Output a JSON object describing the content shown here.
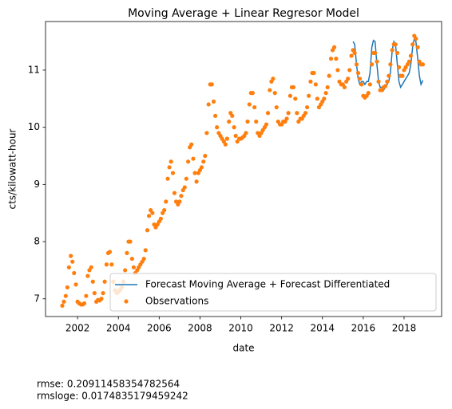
{
  "chart_data": {
    "type": "line",
    "title": "Moving Average + Linear Regresor Model",
    "x_label": "date",
    "y_label": "cts/kilowatt-hour",
    "xlim": [
      2000.43,
      2019.84
    ],
    "ylim": [
      6.69,
      11.85
    ],
    "xticks": [
      2002,
      2004,
      2006,
      2008,
      2010,
      2012,
      2014,
      2016,
      2018
    ],
    "yticks": [
      7,
      8,
      9,
      10,
      11
    ],
    "legend": "lower right",
    "series": [
      {
        "name": "Forecast Moving Average + Forecast Differentiated",
        "color": "#1f77b4",
        "style": "line",
        "x": [
          2015.5,
          2015.58,
          2015.67,
          2015.75,
          2015.83,
          2015.92,
          2016,
          2016.08,
          2016.17,
          2016.25,
          2016.33,
          2016.42,
          2016.5,
          2016.58,
          2016.67,
          2016.75,
          2016.83,
          2016.92,
          2017,
          2017.08,
          2017.17,
          2017.25,
          2017.33,
          2017.42,
          2017.5,
          2017.58,
          2017.67,
          2017.75,
          2017.83,
          2017.92,
          2018,
          2018.08,
          2018.17,
          2018.25,
          2018.33,
          2018.42,
          2018.5,
          2018.58,
          2018.67,
          2018.75,
          2018.83,
          2018.92
        ],
        "values": [
          11.5,
          11.45,
          11.1,
          10.85,
          10.75,
          10.8,
          10.8,
          10.75,
          10.8,
          10.8,
          10.95,
          11.4,
          11.52,
          11.5,
          11.1,
          10.8,
          10.7,
          10.7,
          10.65,
          10.7,
          10.75,
          10.8,
          10.95,
          11.35,
          11.5,
          11.45,
          11.1,
          10.8,
          10.7,
          10.75,
          10.8,
          10.85,
          10.9,
          10.95,
          11.1,
          11.4,
          11.55,
          11.5,
          11.2,
          10.9,
          10.75,
          10.82
        ]
      },
      {
        "name": "Observations",
        "color": "#ff7f0e",
        "style": "points",
        "x": [
          2001.25,
          2001.33,
          2001.42,
          2001.5,
          2001.58,
          2001.67,
          2001.75,
          2001.83,
          2001.92,
          2002,
          2002.08,
          2002.17,
          2002.25,
          2002.33,
          2002.42,
          2002.5,
          2002.58,
          2002.67,
          2002.75,
          2002.83,
          2002.92,
          2003,
          2003.08,
          2003.17,
          2003.25,
          2003.33,
          2003.42,
          2003.5,
          2003.58,
          2003.67,
          2003.75,
          2003.83,
          2003.92,
          2004,
          2004.08,
          2004.17,
          2004.25,
          2004.33,
          2004.42,
          2004.5,
          2004.58,
          2004.67,
          2004.75,
          2004.83,
          2004.92,
          2005,
          2005.08,
          2005.17,
          2005.25,
          2005.33,
          2005.42,
          2005.5,
          2005.58,
          2005.67,
          2005.75,
          2005.83,
          2005.92,
          2006,
          2006.08,
          2006.17,
          2006.25,
          2006.33,
          2006.42,
          2006.5,
          2006.58,
          2006.67,
          2006.75,
          2006.83,
          2006.92,
          2007,
          2007.08,
          2007.17,
          2007.25,
          2007.33,
          2007.42,
          2007.5,
          2007.58,
          2007.67,
          2007.75,
          2007.83,
          2007.92,
          2008,
          2008.08,
          2008.17,
          2008.25,
          2008.33,
          2008.42,
          2008.5,
          2008.58,
          2008.67,
          2008.75,
          2008.83,
          2008.92,
          2009,
          2009.08,
          2009.17,
          2009.25,
          2009.33,
          2009.42,
          2009.5,
          2009.58,
          2009.67,
          2009.75,
          2009.83,
          2009.92,
          2010,
          2010.08,
          2010.17,
          2010.25,
          2010.33,
          2010.42,
          2010.5,
          2010.58,
          2010.67,
          2010.75,
          2010.83,
          2010.92,
          2011,
          2011.08,
          2011.17,
          2011.25,
          2011.33,
          2011.42,
          2011.5,
          2011.58,
          2011.67,
          2011.75,
          2011.83,
          2011.92,
          2012,
          2012.08,
          2012.17,
          2012.25,
          2012.33,
          2012.42,
          2012.5,
          2012.58,
          2012.67,
          2012.75,
          2012.83,
          2012.92,
          2013,
          2013.08,
          2013.17,
          2013.25,
          2013.33,
          2013.42,
          2013.5,
          2013.58,
          2013.67,
          2013.75,
          2013.83,
          2013.92,
          2014,
          2014.08,
          2014.17,
          2014.25,
          2014.33,
          2014.42,
          2014.5,
          2014.58,
          2014.67,
          2014.75,
          2014.83,
          2014.92,
          2015,
          2015.08,
          2015.17,
          2015.25,
          2015.33,
          2015.42,
          2015.5,
          2015.58,
          2015.67,
          2015.75,
          2015.83,
          2015.92,
          2016,
          2016.08,
          2016.17,
          2016.25,
          2016.33,
          2016.42,
          2016.5,
          2016.58,
          2016.67,
          2016.75,
          2016.83,
          2016.92,
          2017,
          2017.08,
          2017.17,
          2017.25,
          2017.33,
          2017.42,
          2017.5,
          2017.58,
          2017.67,
          2017.75,
          2017.83,
          2017.92,
          2018,
          2018.08,
          2018.17,
          2018.25,
          2018.33,
          2018.42,
          2018.5,
          2018.58,
          2018.67,
          2018.75,
          2018.83,
          2018.92
        ],
        "values": [
          6.88,
          6.95,
          7.05,
          7.2,
          7.55,
          7.75,
          7.65,
          7.45,
          7.25,
          6.95,
          6.92,
          6.9,
          6.9,
          6.92,
          7.05,
          7.4,
          7.5,
          7.55,
          7.3,
          7.1,
          6.95,
          6.98,
          6.97,
          7.0,
          7.1,
          7.3,
          7.6,
          7.8,
          7.82,
          7.6,
          7.3,
          7.15,
          7.1,
          7.12,
          7.15,
          7.2,
          7.3,
          7.5,
          7.8,
          8.0,
          8.0,
          7.7,
          7.55,
          7.45,
          7.5,
          7.55,
          7.6,
          7.65,
          7.7,
          7.85,
          8.2,
          8.45,
          8.55,
          8.5,
          8.3,
          8.25,
          8.3,
          8.35,
          8.4,
          8.5,
          8.55,
          8.7,
          9.1,
          9.3,
          9.4,
          9.2,
          8.85,
          8.7,
          8.65,
          8.7,
          8.8,
          8.9,
          8.95,
          9.1,
          9.4,
          9.65,
          9.7,
          9.45,
          9.2,
          9.05,
          9.2,
          9.25,
          9.3,
          9.4,
          9.5,
          9.9,
          10.4,
          10.75,
          10.75,
          10.45,
          10.2,
          10.0,
          9.9,
          9.85,
          9.8,
          9.75,
          9.7,
          9.8,
          10.1,
          10.25,
          10.2,
          10.0,
          9.85,
          9.75,
          9.8,
          9.8,
          9.82,
          9.85,
          9.9,
          10.1,
          10.4,
          10.6,
          10.6,
          10.35,
          10.1,
          9.9,
          9.85,
          9.9,
          9.95,
          10.0,
          10.05,
          10.25,
          10.65,
          10.8,
          10.85,
          10.6,
          10.35,
          10.1,
          10.05,
          10.05,
          10.1,
          10.1,
          10.15,
          10.25,
          10.55,
          10.7,
          10.7,
          10.5,
          10.25,
          10.1,
          10.15,
          10.15,
          10.2,
          10.25,
          10.35,
          10.55,
          10.8,
          10.95,
          10.95,
          10.75,
          10.5,
          10.35,
          10.4,
          10.45,
          10.5,
          10.6,
          10.7,
          10.9,
          11.2,
          11.35,
          11.4,
          11.2,
          11.0,
          10.8,
          10.75,
          10.75,
          10.7,
          10.8,
          10.85,
          11.0,
          11.25,
          11.35,
          11.3,
          11.1,
          10.95,
          10.85,
          10.75,
          10.55,
          10.52,
          10.55,
          10.6,
          10.75,
          11.1,
          11.3,
          11.3,
          11.15,
          10.8,
          10.65,
          10.65,
          10.7,
          10.72,
          10.8,
          10.9,
          11.1,
          11.35,
          11.45,
          11.45,
          11.3,
          11.05,
          10.9,
          10.9,
          11.0,
          11.05,
          11.1,
          11.15,
          11.25,
          11.45,
          11.6,
          11.55,
          11.4,
          11.15,
          11.1,
          11.1
        ]
      }
    ],
    "annotations": [
      "rmse: 0.20911458354782564",
      "rmsloge: 0.0174835179459242"
    ]
  }
}
